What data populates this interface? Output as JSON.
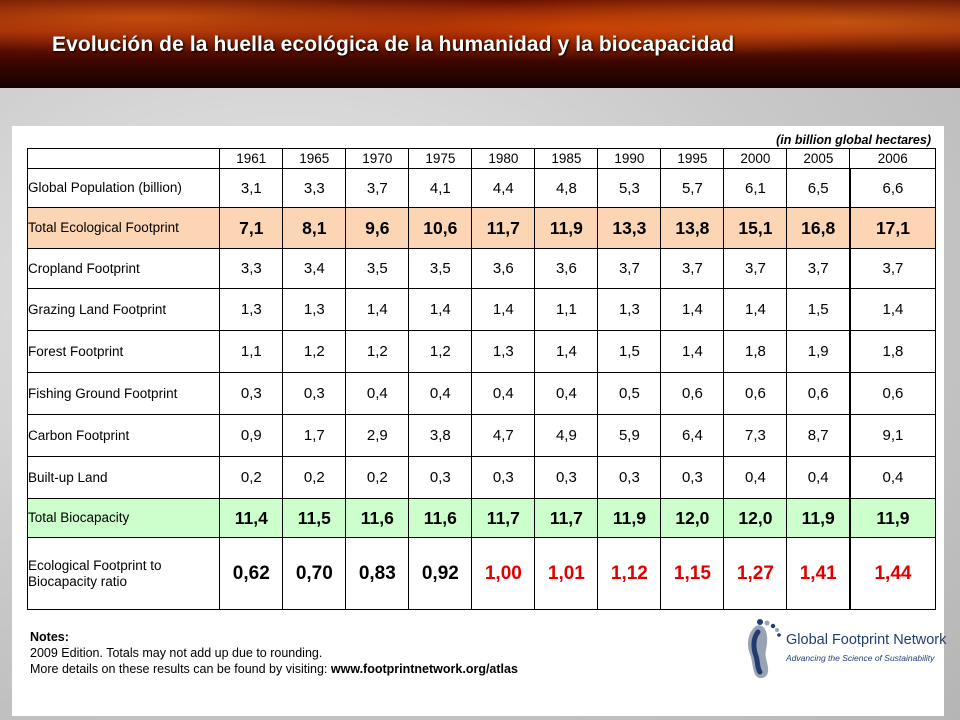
{
  "title": "Evolución de la huella ecológica de la humanidad y la biocapacidad",
  "units": "(in billion global hectares)",
  "columns": [
    "1961",
    "1965",
    "1970",
    "1975",
    "1980",
    "1985",
    "1990",
    "1995",
    "2000",
    "2005",
    "2006"
  ],
  "rows": [
    {
      "label": "Global Population (billion)",
      "values": [
        "3,1",
        "3,3",
        "3,7",
        "4,1",
        "4,4",
        "4,8",
        "5,3",
        "5,7",
        "6,1",
        "6,5",
        "6,6"
      ]
    },
    {
      "label": "Total Ecological Footprint",
      "values": [
        "7,1",
        "8,1",
        "9,6",
        "10,6",
        "11,7",
        "11,9",
        "13,3",
        "13,8",
        "15,1",
        "16,8",
        "17,1"
      ]
    },
    {
      "label": "Cropland Footprint",
      "values": [
        "3,3",
        "3,4",
        "3,5",
        "3,5",
        "3,6",
        "3,6",
        "3,7",
        "3,7",
        "3,7",
        "3,7",
        "3,7"
      ]
    },
    {
      "label": "Grazing Land Footprint",
      "values": [
        "1,3",
        "1,3",
        "1,4",
        "1,4",
        "1,4",
        "1,1",
        "1,3",
        "1,4",
        "1,4",
        "1,5",
        "1,4"
      ]
    },
    {
      "label": "Forest Footprint",
      "values": [
        "1,1",
        "1,2",
        "1,2",
        "1,2",
        "1,3",
        "1,4",
        "1,5",
        "1,4",
        "1,8",
        "1,9",
        "1,8"
      ]
    },
    {
      "label": "Fishing Ground Footprint",
      "values": [
        "0,3",
        "0,3",
        "0,4",
        "0,4",
        "0,4",
        "0,4",
        "0,5",
        "0,6",
        "0,6",
        "0,6",
        "0,6"
      ]
    },
    {
      "label": "Carbon Footprint",
      "values": [
        "0,9",
        "1,7",
        "2,9",
        "3,8",
        "4,7",
        "4,9",
        "5,9",
        "6,4",
        "7,3",
        "8,7",
        "9,1"
      ]
    },
    {
      "label": "Built-up Land",
      "values": [
        "0,2",
        "0,2",
        "0,2",
        "0,3",
        "0,3",
        "0,3",
        "0,3",
        "0,3",
        "0,4",
        "0,4",
        "0,4"
      ]
    },
    {
      "label": "Total Biocapacity",
      "values": [
        "11,4",
        "11,5",
        "11,6",
        "11,6",
        "11,7",
        "11,7",
        "11,9",
        "12,0",
        "12,0",
        "11,9",
        "11,9"
      ]
    },
    {
      "label": "Ecological Footprint to Biocapacity ratio",
      "values": [
        "0,62",
        "0,70",
        "0,83",
        "0,92",
        "1,00",
        "1,01",
        "1,12",
        "1,15",
        "1,27",
        "1,41",
        "1,44"
      ]
    }
  ],
  "notes": {
    "heading": "Notes:",
    "line1": "2009 Edition. Totals may not add up due to rounding.",
    "line2_prefix": "More details on these results can be found by visiting: ",
    "line2_link": "www.footprintnetwork.org/atlas"
  },
  "logo": {
    "name": "Global Footprint Network",
    "tagline": "Advancing the Science of Sustainability"
  },
  "colors": {
    "eco_row_bg": "#fcd5b4",
    "bio_row_bg": "#ccffcc",
    "overshoot_red": "#e00000",
    "logo_blue": "#233b73"
  }
}
